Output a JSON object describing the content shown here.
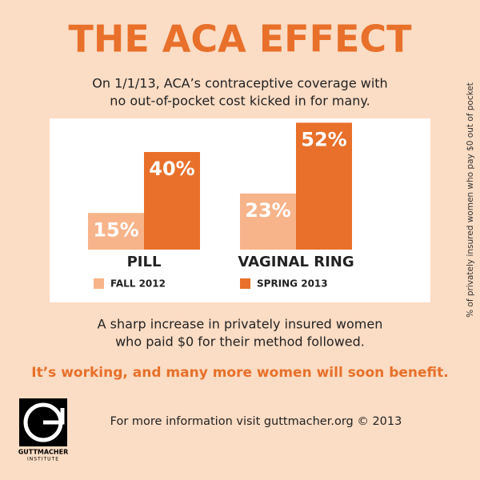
{
  "chart_data": {
    "type": "bar",
    "title": "THE ACA EFFECT",
    "subtitle": [
      "On 1/1/13, ACA’s contraceptive coverage with",
      "no out-of-pocket cost kicked in for many."
    ],
    "ylabel": "% of privately insured women who pay $0 out of pocket",
    "categories": [
      "PILL",
      "VAGINAL RING"
    ],
    "series": [
      {
        "name": "FALL 2012",
        "color": "#f7b48a",
        "values": [
          15,
          23
        ],
        "value_labels": [
          "15%",
          "23%"
        ]
      },
      {
        "name": "SPRING 2013",
        "color": "#e8702a",
        "values": [
          40,
          52
        ],
        "value_labels": [
          "40%",
          "52%"
        ]
      }
    ]
  },
  "notes": [
    "A sharp increase in privately insured women",
    "who paid $0 for their method followed."
  ],
  "tagline": "It’s working, and many more women will soon benefit.",
  "footer": "For more information visit guttmacher.org © 2013",
  "logo": [
    "GUTTMACHER",
    "INSTITUTE"
  ]
}
